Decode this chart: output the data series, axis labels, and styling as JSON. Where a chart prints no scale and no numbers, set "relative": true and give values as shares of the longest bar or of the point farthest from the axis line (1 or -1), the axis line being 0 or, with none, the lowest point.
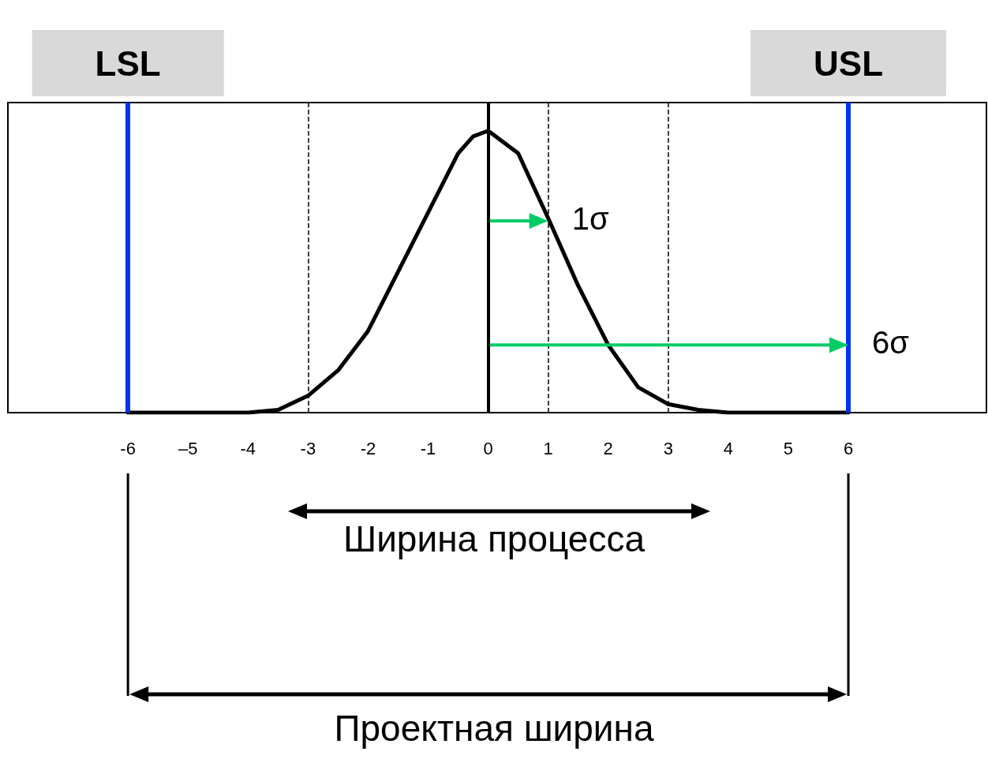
{
  "chart_data": {
    "type": "line",
    "relative": true,
    "color": "#000000",
    "marker": "none",
    "line_style": "solid",
    "grid": false,
    "x": [
      -6,
      -5,
      -4,
      -3.5,
      -3,
      -2.5,
      -2,
      -1.5,
      -1,
      -0.5,
      -0.25,
      0,
      0.5,
      1,
      1.5,
      2,
      2.5,
      3,
      3.5,
      4,
      5,
      6
    ],
    "values": [
      0,
      0,
      0,
      0.01,
      0.06,
      0.15,
      0.29,
      0.5,
      0.71,
      0.92,
      0.98,
      1,
      0.92,
      0.69,
      0.45,
      0.24,
      0.09,
      0.03,
      0.01,
      0,
      0,
      0
    ],
    "xlim": [
      -8,
      8.3
    ],
    "xticks": [
      -6,
      {
        "value": -5,
        "label": "–5"
      },
      -4,
      -3,
      -2,
      -1,
      0,
      1,
      2,
      3,
      4,
      5,
      6
    ],
    "ref_lines": [
      {
        "axis": "x",
        "value": -6,
        "label": "LSL",
        "color": "#0033ee",
        "line_style": "solid"
      },
      {
        "axis": "x",
        "value": 6,
        "label": "USL",
        "color": "#0033ee",
        "line_style": "solid"
      },
      {
        "axis": "x",
        "value": 0,
        "color": "#000000",
        "line_style": "solid"
      },
      {
        "axis": "x",
        "value": -3,
        "color": "#000000",
        "line_style": "dashed"
      },
      {
        "axis": "x",
        "value": 1,
        "color": "#000000",
        "line_style": "dashed"
      },
      {
        "axis": "x",
        "value": 3,
        "color": "#000000",
        "line_style": "dashed"
      }
    ],
    "annotations": [
      {
        "text": "1σ",
        "x": 1,
        "y": 0.68
      },
      {
        "text": "6σ",
        "x": 6,
        "y": 0.24
      },
      "Ширина процесса",
      "Проектная ширина"
    ]
  }
}
